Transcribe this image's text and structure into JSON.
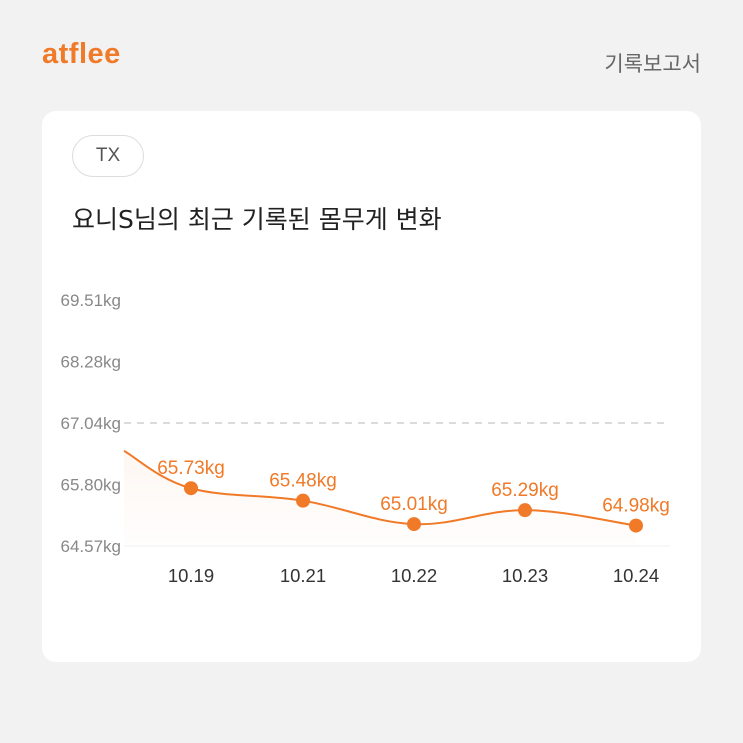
{
  "header": {
    "logo_text": "atflee",
    "report_label": "기록보고서"
  },
  "card": {
    "tag": "TX",
    "title": "요니S님의 최근 기록된 몸무게 변화"
  },
  "colors": {
    "accent": "#f07a28",
    "grid_dashed": "#cfcfcf",
    "axis_text": "#888888"
  },
  "chart_data": {
    "type": "line",
    "title": "요니S님의 최근 기록된 몸무게 변화",
    "xlabel": "",
    "ylabel": "",
    "categories": [
      "10.19",
      "10.21",
      "10.22",
      "10.23",
      "10.24"
    ],
    "series": [
      {
        "values": [
          65.73,
          65.48,
          65.01,
          65.29,
          64.98
        ]
      }
    ],
    "data_labels": [
      "65.73kg",
      "65.48kg",
      "65.01kg",
      "65.29kg",
      "64.98kg"
    ],
    "y_ticks": [
      "64.57kg",
      "65.80kg",
      "67.04kg",
      "68.28kg",
      "69.51kg"
    ],
    "y_tick_values": [
      64.57,
      65.8,
      67.04,
      68.28,
      69.51
    ],
    "ylim": [
      64.57,
      69.51
    ],
    "reference_line": 67.04,
    "leading_value": 66.48,
    "grid": false
  }
}
